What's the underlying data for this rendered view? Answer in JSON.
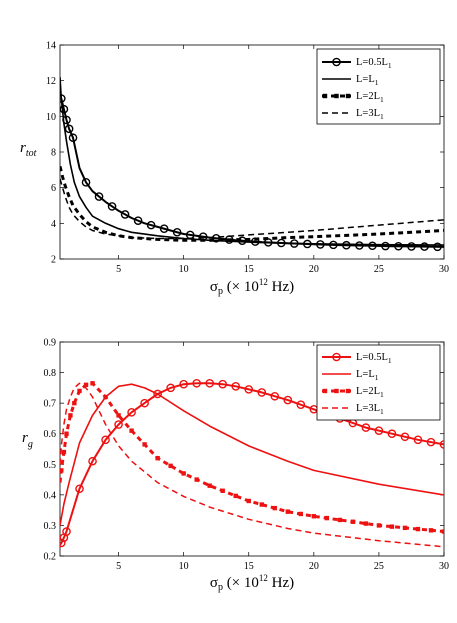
{
  "chart_data": [
    {
      "type": "line",
      "color": "#000000",
      "xlim": [
        0.5,
        30
      ],
      "ylim": [
        2,
        14
      ],
      "xticks": [
        5,
        10,
        15,
        20,
        25,
        30
      ],
      "yticks": [
        2,
        4,
        6,
        8,
        10,
        12,
        14
      ],
      "xlabel": {
        "main": "σ",
        "sub": "p",
        "paren": " (× 10",
        "sup": "12",
        "unit": " Hz)"
      },
      "ylabel": {
        "main": "r",
        "sub": "tot"
      },
      "legend_position": "top-right",
      "grid": false,
      "series": [
        {
          "name": {
            "base": "L=0.5L",
            "sub": "1"
          },
          "style": "solid-circle",
          "x": [
            0.6,
            0.8,
            1.0,
            1.2,
            1.5,
            2,
            2.5,
            3,
            4,
            5,
            6,
            7,
            8,
            9,
            10,
            12,
            14,
            16,
            18,
            20,
            22,
            24,
            26,
            28,
            30
          ],
          "y": [
            11.0,
            10.4,
            9.8,
            9.3,
            8.8,
            7.1,
            6.3,
            5.8,
            5.2,
            4.7,
            4.3,
            4.0,
            3.8,
            3.6,
            3.4,
            3.2,
            3.05,
            2.95,
            2.88,
            2.83,
            2.78,
            2.75,
            2.72,
            2.7,
            2.68
          ],
          "marker_x": [
            0.6,
            0.8,
            1.0,
            1.2,
            1.5,
            2.5,
            3.5,
            4.5,
            5.5,
            6.5,
            7.5,
            8.5,
            9.5,
            10.5,
            11.5,
            12.5,
            13.5,
            14.5,
            15.5,
            16.5,
            17.5,
            18.5,
            19.5,
            20.5,
            21.5,
            22.5,
            23.5,
            24.5,
            25.5,
            26.5,
            27.5,
            28.5,
            29.5
          ]
        },
        {
          "name": {
            "base": "L=L",
            "sub": "1"
          },
          "style": "solid",
          "x": [
            0.5,
            0.6,
            0.8,
            1.0,
            1.3,
            1.6,
            2,
            2.5,
            3,
            4,
            5,
            6,
            8,
            10,
            12,
            15,
            18,
            20,
            25,
            30
          ],
          "y": [
            12.2,
            11.0,
            9.6,
            8.6,
            7.3,
            6.3,
            5.5,
            4.9,
            4.4,
            4.0,
            3.7,
            3.5,
            3.3,
            3.15,
            3.05,
            2.95,
            2.88,
            2.85,
            2.8,
            2.78
          ]
        },
        {
          "name": {
            "base": "L=2L",
            "sub": "1"
          },
          "style": "thick-dash-square",
          "x": [
            0.5,
            0.7,
            0.9,
            1.2,
            1.5,
            2,
            2.5,
            3,
            4,
            5,
            6,
            8,
            10,
            12,
            15,
            18,
            20,
            25,
            30
          ],
          "y": [
            7.2,
            6.6,
            6.1,
            5.5,
            5.0,
            4.5,
            4.1,
            3.8,
            3.5,
            3.3,
            3.2,
            3.1,
            3.05,
            3.05,
            3.1,
            3.2,
            3.25,
            3.4,
            3.6
          ]
        },
        {
          "name": {
            "base": "L=3L",
            "sub": "1"
          },
          "style": "dash",
          "x": [
            0.5,
            0.7,
            0.9,
            1.2,
            1.5,
            2,
            2.5,
            3,
            4,
            5,
            6,
            8,
            10,
            12,
            15,
            18,
            20,
            25,
            30
          ],
          "y": [
            6.5,
            6.0,
            5.5,
            4.9,
            4.5,
            4.1,
            3.8,
            3.6,
            3.4,
            3.3,
            3.2,
            3.15,
            3.15,
            3.2,
            3.35,
            3.5,
            3.6,
            3.9,
            4.2
          ]
        }
      ]
    },
    {
      "type": "line",
      "color": "#ee1111",
      "xlim": [
        0.5,
        30
      ],
      "ylim": [
        0.2,
        0.9
      ],
      "xticks": [
        5,
        10,
        15,
        20,
        25,
        30
      ],
      "yticks": [
        0.2,
        0.3,
        0.4,
        0.5,
        0.6,
        0.7,
        0.8,
        0.9
      ],
      "xlabel": {
        "main": "σ",
        "sub": "p",
        "paren": " (× 10",
        "sup": "12",
        "unit": " Hz)"
      },
      "ylabel": {
        "main": "r",
        "sub": "g"
      },
      "legend_position": "top-right",
      "grid": false,
      "series": [
        {
          "name": {
            "base": "L=0.5L",
            "sub": "1"
          },
          "style": "solid-circle",
          "x": [
            0.5,
            0.7,
            1.0,
            1.5,
            2,
            3,
            4,
            5,
            6,
            7,
            8,
            9,
            10,
            11,
            12,
            13,
            14,
            16,
            18,
            20,
            22,
            24,
            26,
            28,
            30
          ],
          "y": [
            0.235,
            0.25,
            0.28,
            0.35,
            0.42,
            0.51,
            0.58,
            0.63,
            0.67,
            0.7,
            0.73,
            0.75,
            0.762,
            0.765,
            0.765,
            0.762,
            0.755,
            0.735,
            0.71,
            0.68,
            0.65,
            0.62,
            0.6,
            0.58,
            0.565
          ],
          "marker_x": [
            0.6,
            0.8,
            1.0,
            2,
            3,
            4,
            5,
            6,
            7,
            8,
            9,
            10,
            11,
            12,
            13,
            14,
            15,
            16,
            17,
            18,
            19,
            20,
            21,
            22,
            23,
            24,
            25,
            26,
            27,
            28,
            29,
            30
          ]
        },
        {
          "name": {
            "base": "L=L",
            "sub": "1"
          },
          "style": "solid",
          "x": [
            0.5,
            0.8,
            1.2,
            2,
            3,
            4,
            5,
            6,
            7,
            8,
            10,
            12,
            15,
            18,
            20,
            25,
            30
          ],
          "y": [
            0.3,
            0.37,
            0.44,
            0.57,
            0.66,
            0.72,
            0.755,
            0.762,
            0.75,
            0.73,
            0.675,
            0.625,
            0.56,
            0.51,
            0.48,
            0.435,
            0.4
          ]
        },
        {
          "name": {
            "base": "L=2L",
            "sub": "1"
          },
          "style": "thick-dash-square",
          "x": [
            0.5,
            0.6,
            0.8,
            1.0,
            1.3,
            1.6,
            2,
            2.5,
            3,
            4,
            5,
            6,
            8,
            10,
            12,
            15,
            18,
            20,
            25,
            30
          ],
          "y": [
            0.44,
            0.48,
            0.54,
            0.6,
            0.66,
            0.7,
            0.74,
            0.76,
            0.765,
            0.72,
            0.66,
            0.61,
            0.52,
            0.47,
            0.43,
            0.38,
            0.345,
            0.33,
            0.3,
            0.28
          ],
          "marker_x": [
            0.6,
            0.8,
            1.0,
            1.3,
            1.6,
            2,
            2.5,
            3,
            4,
            5,
            6,
            7,
            8,
            9,
            10,
            11,
            12,
            13,
            14,
            15,
            16,
            17,
            18,
            19,
            20,
            21,
            22,
            23,
            24,
            25,
            26,
            27,
            28,
            29,
            30
          ]
        },
        {
          "name": {
            "base": "L=3L",
            "sub": "1"
          },
          "style": "dash",
          "x": [
            0.5,
            0.6,
            0.8,
            1.0,
            1.3,
            1.6,
            2,
            2.5,
            3,
            4,
            5,
            6,
            8,
            10,
            12,
            15,
            18,
            20,
            25,
            30
          ],
          "y": [
            0.5,
            0.56,
            0.63,
            0.68,
            0.72,
            0.75,
            0.765,
            0.75,
            0.72,
            0.63,
            0.56,
            0.51,
            0.44,
            0.395,
            0.36,
            0.32,
            0.29,
            0.275,
            0.25,
            0.23
          ]
        }
      ]
    }
  ]
}
